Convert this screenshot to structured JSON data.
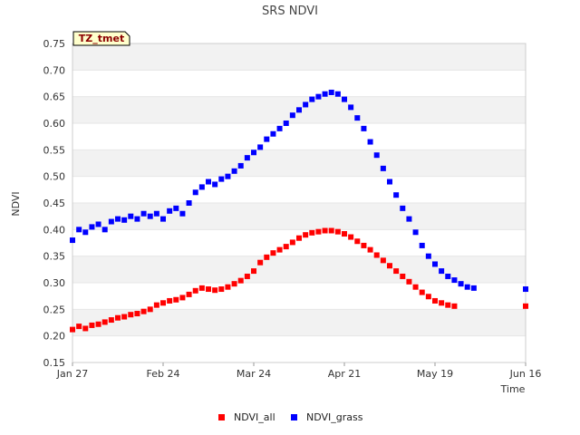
{
  "chart_data": {
    "type": "scatter",
    "title": "SRS NDVI",
    "badge": "TZ_tmet",
    "xlabel": "Time",
    "ylabel": "NDVI",
    "ylim": [
      0.15,
      0.75
    ],
    "yticks": [
      "0.15",
      "0.20",
      "0.25",
      "0.30",
      "0.35",
      "0.40",
      "0.45",
      "0.50",
      "0.55",
      "0.60",
      "0.65",
      "0.70",
      "0.75"
    ],
    "xticks": [
      "Jan 27",
      "Feb 24",
      "Mar 24",
      "Apr 21",
      "May 19",
      "Jun 16"
    ],
    "xlim_days": [
      0,
      140
    ],
    "grid": "horizontal bands",
    "legend_position": "bottom",
    "series": [
      {
        "name": "NDVI_all",
        "color": "#ff0000",
        "points": [
          [
            0,
            0.212
          ],
          [
            2,
            0.218
          ],
          [
            4,
            0.214
          ],
          [
            6,
            0.22
          ],
          [
            8,
            0.222
          ],
          [
            10,
            0.226
          ],
          [
            12,
            0.23
          ],
          [
            14,
            0.234
          ],
          [
            16,
            0.236
          ],
          [
            18,
            0.24
          ],
          [
            20,
            0.242
          ],
          [
            22,
            0.246
          ],
          [
            24,
            0.25
          ],
          [
            26,
            0.258
          ],
          [
            28,
            0.262
          ],
          [
            30,
            0.266
          ],
          [
            32,
            0.268
          ],
          [
            34,
            0.272
          ],
          [
            36,
            0.278
          ],
          [
            38,
            0.285
          ],
          [
            40,
            0.29
          ],
          [
            42,
            0.288
          ],
          [
            44,
            0.286
          ],
          [
            46,
            0.288
          ],
          [
            48,
            0.292
          ],
          [
            50,
            0.298
          ],
          [
            52,
            0.304
          ],
          [
            54,
            0.312
          ],
          [
            56,
            0.322
          ],
          [
            58,
            0.338
          ],
          [
            60,
            0.348
          ],
          [
            62,
            0.356
          ],
          [
            64,
            0.362
          ],
          [
            66,
            0.368
          ],
          [
            68,
            0.376
          ],
          [
            70,
            0.384
          ],
          [
            72,
            0.39
          ],
          [
            74,
            0.394
          ],
          [
            76,
            0.396
          ],
          [
            78,
            0.398
          ],
          [
            80,
            0.398
          ],
          [
            82,
            0.396
          ],
          [
            84,
            0.392
          ],
          [
            86,
            0.386
          ],
          [
            88,
            0.378
          ],
          [
            90,
            0.37
          ],
          [
            92,
            0.362
          ],
          [
            94,
            0.352
          ],
          [
            96,
            0.342
          ],
          [
            98,
            0.332
          ],
          [
            100,
            0.322
          ],
          [
            102,
            0.312
          ],
          [
            104,
            0.302
          ],
          [
            106,
            0.292
          ],
          [
            108,
            0.282
          ],
          [
            110,
            0.274
          ],
          [
            112,
            0.266
          ],
          [
            114,
            0.262
          ],
          [
            116,
            0.258
          ],
          [
            118,
            0.256
          ],
          [
            140,
            0.256
          ]
        ]
      },
      {
        "name": "NDVI_grass",
        "color": "#0000ff",
        "points": [
          [
            0,
            0.38
          ],
          [
            2,
            0.4
          ],
          [
            4,
            0.395
          ],
          [
            6,
            0.405
          ],
          [
            8,
            0.41
          ],
          [
            10,
            0.4
          ],
          [
            12,
            0.415
          ],
          [
            14,
            0.42
          ],
          [
            16,
            0.418
          ],
          [
            18,
            0.425
          ],
          [
            20,
            0.42
          ],
          [
            22,
            0.43
          ],
          [
            24,
            0.425
          ],
          [
            26,
            0.43
          ],
          [
            28,
            0.42
          ],
          [
            30,
            0.435
          ],
          [
            32,
            0.44
          ],
          [
            34,
            0.43
          ],
          [
            36,
            0.45
          ],
          [
            38,
            0.47
          ],
          [
            40,
            0.48
          ],
          [
            42,
            0.49
          ],
          [
            44,
            0.485
          ],
          [
            46,
            0.495
          ],
          [
            48,
            0.5
          ],
          [
            50,
            0.51
          ],
          [
            52,
            0.52
          ],
          [
            54,
            0.535
          ],
          [
            56,
            0.545
          ],
          [
            58,
            0.555
          ],
          [
            60,
            0.57
          ],
          [
            62,
            0.58
          ],
          [
            64,
            0.59
          ],
          [
            66,
            0.6
          ],
          [
            68,
            0.615
          ],
          [
            70,
            0.625
          ],
          [
            72,
            0.635
          ],
          [
            74,
            0.645
          ],
          [
            76,
            0.65
          ],
          [
            78,
            0.655
          ],
          [
            80,
            0.658
          ],
          [
            82,
            0.655
          ],
          [
            84,
            0.645
          ],
          [
            86,
            0.63
          ],
          [
            88,
            0.61
          ],
          [
            90,
            0.59
          ],
          [
            92,
            0.565
          ],
          [
            94,
            0.54
          ],
          [
            96,
            0.515
          ],
          [
            98,
            0.49
          ],
          [
            100,
            0.465
          ],
          [
            102,
            0.44
          ],
          [
            104,
            0.42
          ],
          [
            106,
            0.395
          ],
          [
            108,
            0.37
          ],
          [
            110,
            0.35
          ],
          [
            112,
            0.335
          ],
          [
            114,
            0.322
          ],
          [
            116,
            0.312
          ],
          [
            118,
            0.305
          ],
          [
            120,
            0.298
          ],
          [
            122,
            0.292
          ],
          [
            124,
            0.29
          ],
          [
            140,
            0.288
          ]
        ]
      }
    ]
  }
}
